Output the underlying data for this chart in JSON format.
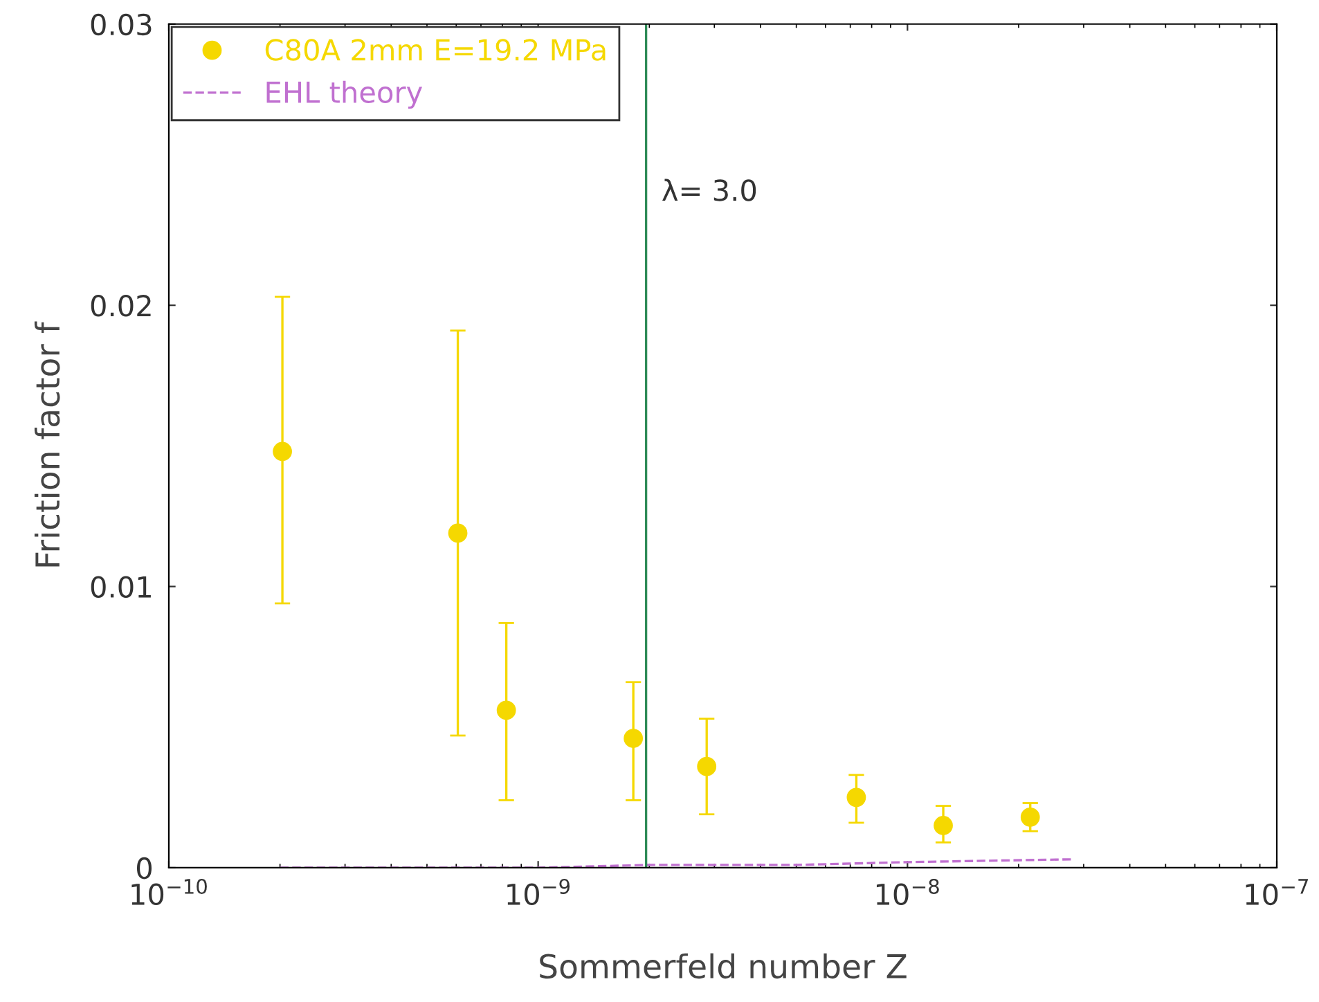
{
  "chart_data": {
    "type": "scatter",
    "xlabel": "Sommerfeld number Z",
    "ylabel": "Friction factor f",
    "log": "x",
    "xlim": [
      1e-10,
      1e-07
    ],
    "xticks": [
      {
        "value": 1e-10,
        "label": "10$^{−10}$"
      },
      {
        "value": 1e-09,
        "label": "10$^{−9}$"
      },
      {
        "value": 1e-08,
        "label": "10$^{−8}$"
      },
      {
        "value": 1e-07,
        "label": "10$^{−7}$"
      }
    ],
    "ylim": [
      0,
      0.03
    ],
    "yticks": [
      0,
      0.01,
      0.02,
      0.03
    ],
    "grid": false,
    "legend": "top left",
    "series": [
      {
        "name": "C80A 2mm E=19.2 MPa",
        "marker": "circle",
        "color": "#f5d800",
        "x": [
          2.03e-10,
          6.06e-10,
          8.2e-10,
          1.81e-09,
          2.86e-09,
          7.27e-09,
          1.25e-08,
          2.15e-08
        ],
        "values": [
          0.0148,
          0.0119,
          0.0056,
          0.0046,
          0.0036,
          0.0025,
          0.0015,
          0.0018
        ],
        "errors": [
          [
            0.0094,
            0.0203
          ],
          [
            0.0047,
            0.0191
          ],
          [
            0.0024,
            0.0087
          ],
          [
            0.0024,
            0.0066
          ],
          [
            0.0019,
            0.0053
          ],
          [
            0.0016,
            0.0033
          ],
          [
            0.0009,
            0.0022
          ],
          [
            0.0013,
            0.0023
          ]
        ]
      },
      {
        "name": "EHL theory",
        "type": "line",
        "line_style": "dashed",
        "color": "#c070d0",
        "x": [
          2e-10,
          1e-09,
          2e-09,
          5e-09,
          1e-08,
          2.8e-08
        ],
        "values": [
          0,
          0,
          0.0001,
          0.0001,
          0.0002,
          0.0003
        ]
      }
    ],
    "ref_lines": [
      {
        "axis": "x",
        "value": 1.96e-09,
        "color": "#2e8b57"
      }
    ],
    "annotations": [
      {
        "text": "λ= 3.0",
        "x": 1.96e-09,
        "y": 0.024
      }
    ]
  }
}
